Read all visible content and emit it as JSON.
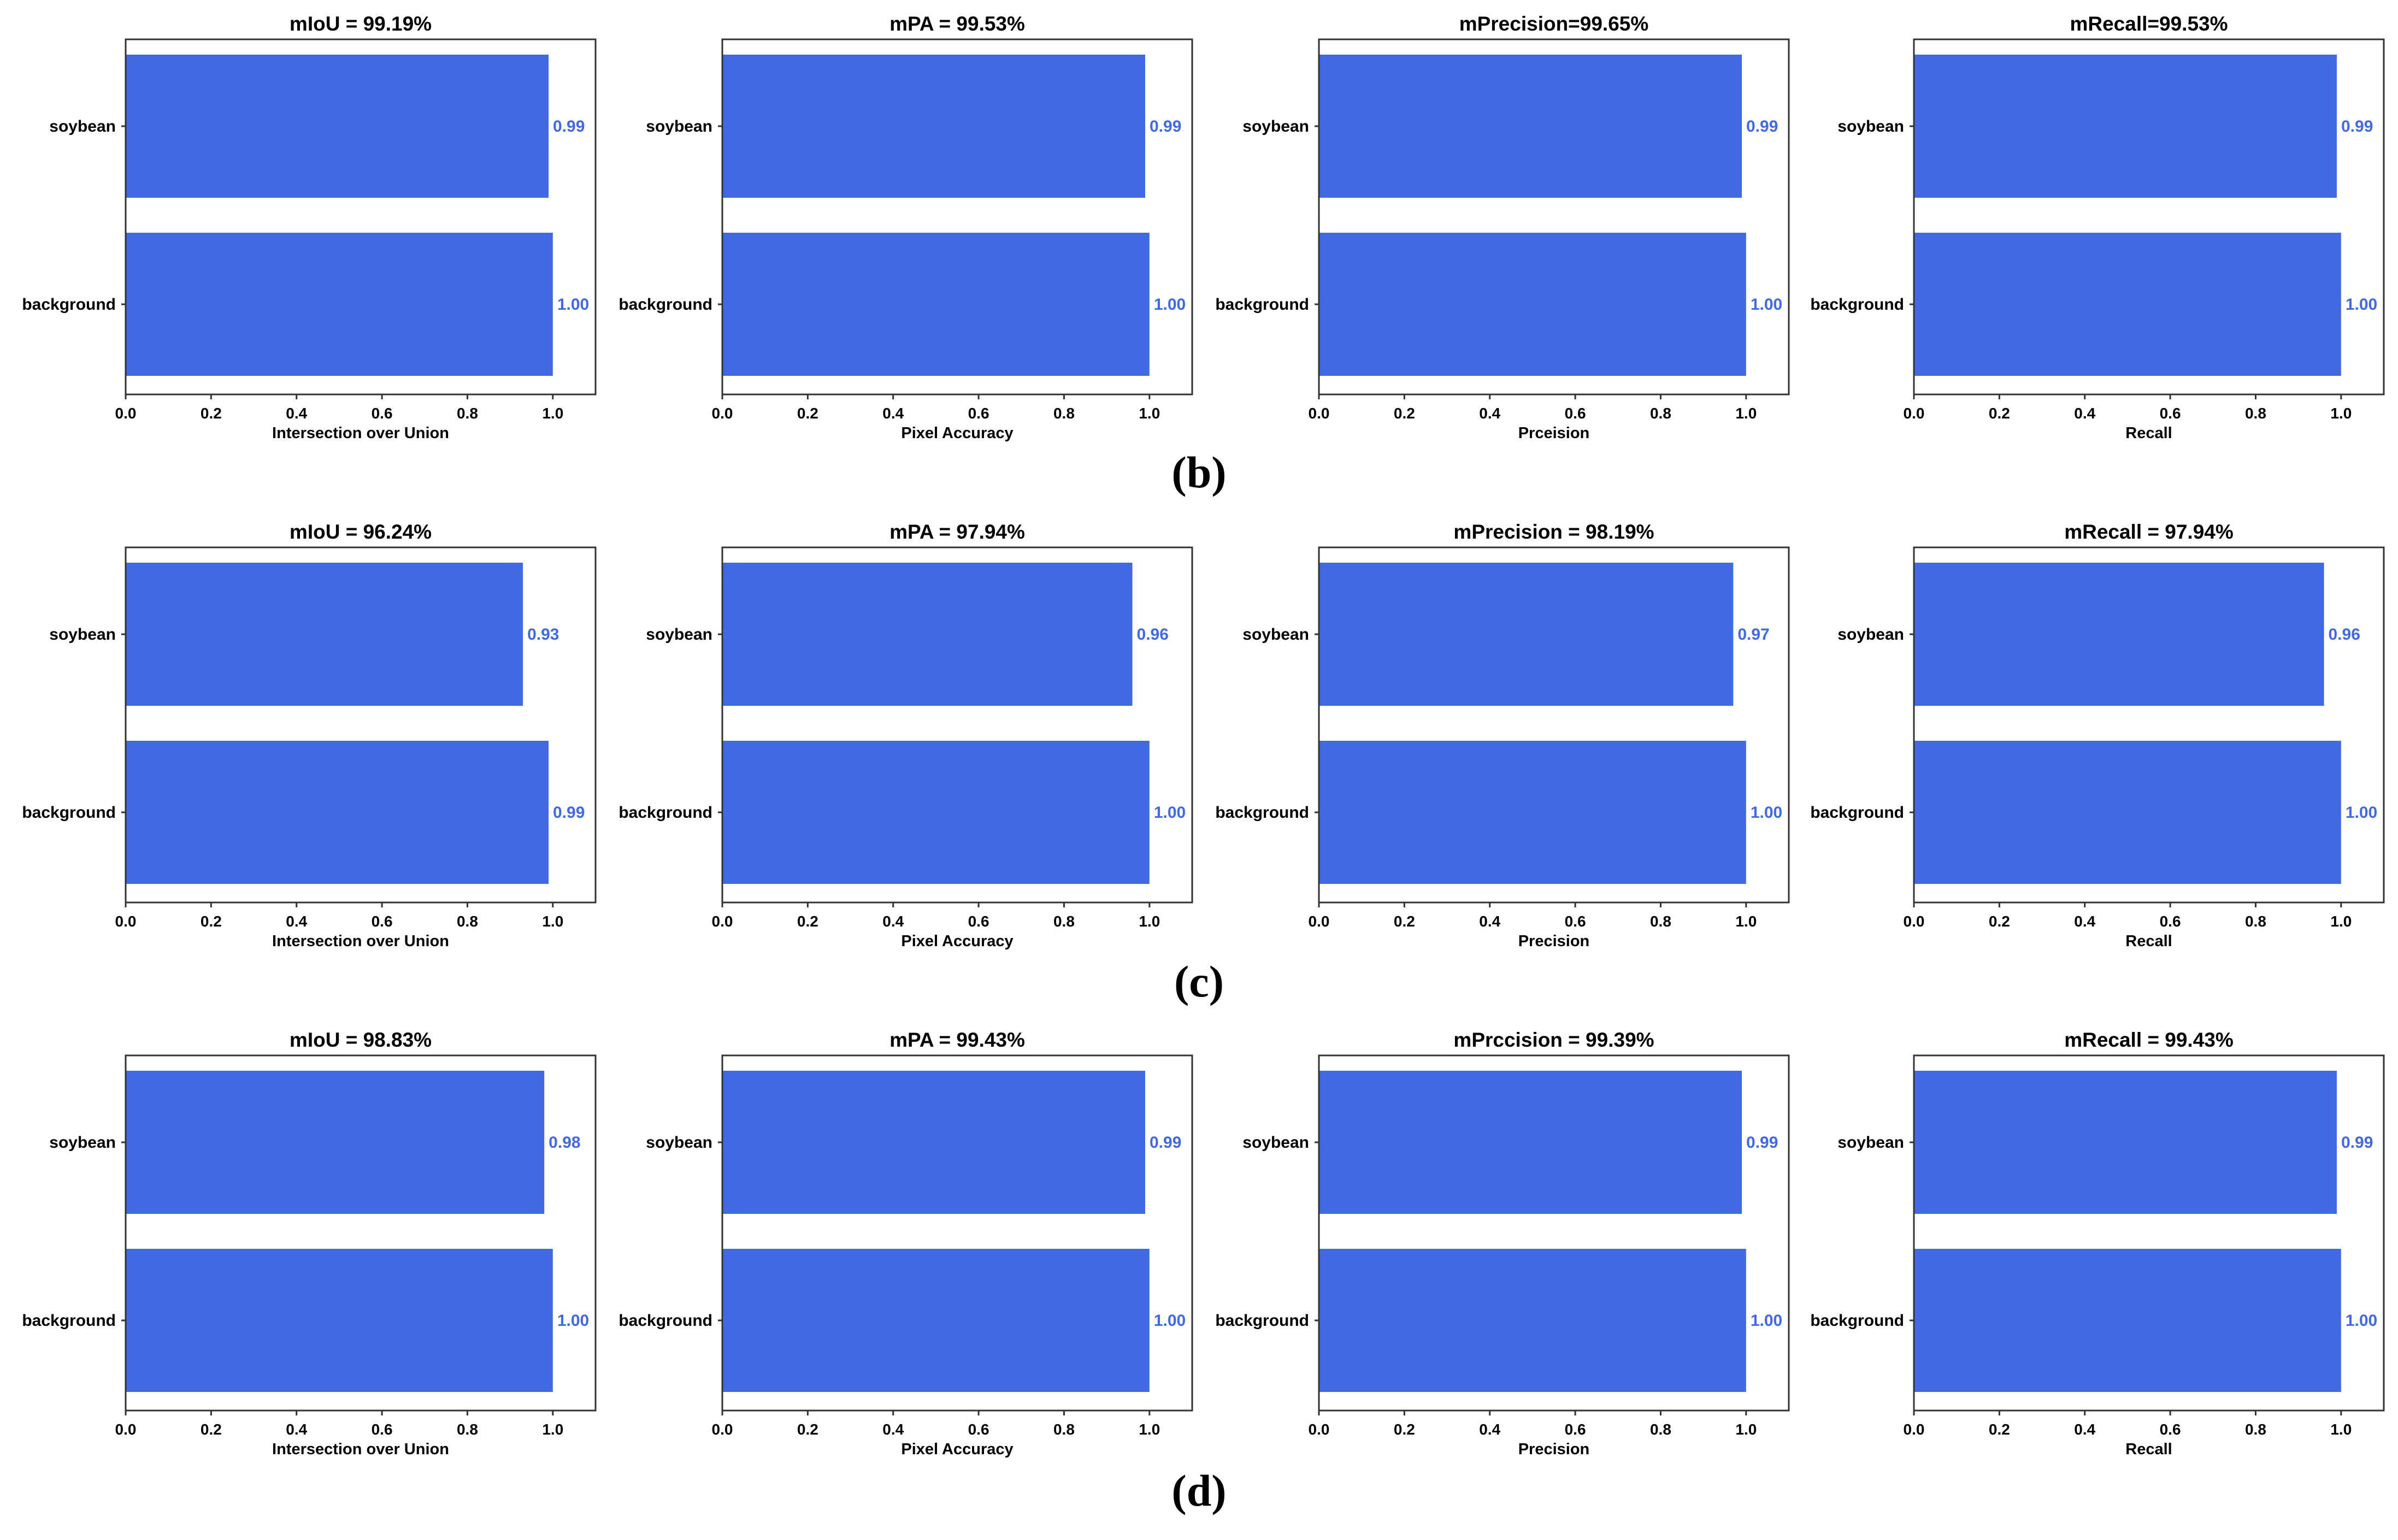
{
  "colors": {
    "bar": "#4169E1",
    "value_label": "#4169E1",
    "axis": "#333333",
    "text": "#000000"
  },
  "rows": [
    {
      "label_pre": "(",
      "label_letter": "b",
      "label_post": ")"
    },
    {
      "label_pre": "(",
      "label_letter": "c",
      "label_post": ")"
    },
    {
      "label_pre": "(",
      "label_letter": "d",
      "label_post": ")"
    }
  ],
  "chart_data": [
    {
      "row": 0,
      "col": 0,
      "type": "bar",
      "orientation": "horizontal",
      "title": "mIoU = 99.19%",
      "xlabel": "Intersection over Union",
      "ylabel": "",
      "categories": [
        "soybean",
        "background"
      ],
      "values": [
        0.99,
        1.0
      ],
      "value_labels": [
        "0.99",
        "1.00"
      ],
      "xlim": [
        0.0,
        1.1
      ],
      "xticks": [
        "0.0",
        "0.2",
        "0.4",
        "0.6",
        "0.8",
        "1.0"
      ]
    },
    {
      "row": 0,
      "col": 1,
      "type": "bar",
      "orientation": "horizontal",
      "title": "mPA = 99.53%",
      "xlabel": "Pixel Accuracy",
      "ylabel": "",
      "categories": [
        "soybean",
        "background"
      ],
      "values": [
        0.99,
        1.0
      ],
      "value_labels": [
        "0.99",
        "1.00"
      ],
      "xlim": [
        0.0,
        1.1
      ],
      "xticks": [
        "0.0",
        "0.2",
        "0.4",
        "0.6",
        "0.8",
        "1.0"
      ]
    },
    {
      "row": 0,
      "col": 2,
      "type": "bar",
      "orientation": "horizontal",
      "title": "mPrecision=99.65%",
      "xlabel": "Prceision",
      "ylabel": "",
      "categories": [
        "soybean",
        "background"
      ],
      "values": [
        0.99,
        1.0
      ],
      "value_labels": [
        "0.99",
        "1.00"
      ],
      "xlim": [
        0.0,
        1.1
      ],
      "xticks": [
        "0.0",
        "0.2",
        "0.4",
        "0.6",
        "0.8",
        "1.0"
      ]
    },
    {
      "row": 0,
      "col": 3,
      "type": "bar",
      "orientation": "horizontal",
      "title": "mRecall=99.53%",
      "xlabel": "Recall",
      "ylabel": "",
      "categories": [
        "soybean",
        "background"
      ],
      "values": [
        0.99,
        1.0
      ],
      "value_labels": [
        "0.99",
        "1.00"
      ],
      "xlim": [
        0.0,
        1.1
      ],
      "xticks": [
        "0.0",
        "0.2",
        "0.4",
        "0.6",
        "0.8",
        "1.0"
      ]
    },
    {
      "row": 1,
      "col": 0,
      "type": "bar",
      "orientation": "horizontal",
      "title": "mIoU = 96.24%",
      "xlabel": "Intersection over Union",
      "ylabel": "",
      "categories": [
        "soybean",
        "background"
      ],
      "values": [
        0.93,
        0.99
      ],
      "value_labels": [
        "0.93",
        "0.99"
      ],
      "xlim": [
        0.0,
        1.1
      ],
      "xticks": [
        "0.0",
        "0.2",
        "0.4",
        "0.6",
        "0.8",
        "1.0"
      ]
    },
    {
      "row": 1,
      "col": 1,
      "type": "bar",
      "orientation": "horizontal",
      "title": "mPA =  97.94%",
      "xlabel": "Pixel Accuracy",
      "ylabel": "",
      "categories": [
        "soybean",
        "background"
      ],
      "values": [
        0.96,
        1.0
      ],
      "value_labels": [
        "0.96",
        "1.00"
      ],
      "xlim": [
        0.0,
        1.1
      ],
      "xticks": [
        "0.0",
        "0.2",
        "0.4",
        "0.6",
        "0.8",
        "1.0"
      ]
    },
    {
      "row": 1,
      "col": 2,
      "type": "bar",
      "orientation": "horizontal",
      "title": "mPrecision = 98.19%",
      "xlabel": "Precision",
      "ylabel": "",
      "categories": [
        "soybean",
        "background"
      ],
      "values": [
        0.97,
        1.0
      ],
      "value_labels": [
        "0.97",
        "1.00"
      ],
      "xlim": [
        0.0,
        1.1
      ],
      "xticks": [
        "0.0",
        "0.2",
        "0.4",
        "0.6",
        "0.8",
        "1.0"
      ]
    },
    {
      "row": 1,
      "col": 3,
      "type": "bar",
      "orientation": "horizontal",
      "title": "mRecall = 97.94%",
      "xlabel": "Recall",
      "ylabel": "",
      "categories": [
        "soybean",
        "background"
      ],
      "values": [
        0.96,
        1.0
      ],
      "value_labels": [
        "0.96",
        "1.00"
      ],
      "xlim": [
        0.0,
        1.1
      ],
      "xticks": [
        "0.0",
        "0.2",
        "0.4",
        "0.6",
        "0.8",
        "1.0"
      ]
    },
    {
      "row": 2,
      "col": 0,
      "type": "bar",
      "orientation": "horizontal",
      "title": "mIoU = 98.83%",
      "xlabel": "Intersection over Union",
      "ylabel": "",
      "categories": [
        "soybean",
        "background"
      ],
      "values": [
        0.98,
        1.0
      ],
      "value_labels": [
        "0.98",
        "1.00"
      ],
      "xlim": [
        0.0,
        1.1
      ],
      "xticks": [
        "0.0",
        "0.2",
        "0.4",
        "0.6",
        "0.8",
        "1.0"
      ]
    },
    {
      "row": 2,
      "col": 1,
      "type": "bar",
      "orientation": "horizontal",
      "title": "mPA = 99.43%",
      "xlabel": "Pixel Accuracy",
      "ylabel": "",
      "categories": [
        "soybean",
        "background"
      ],
      "values": [
        0.99,
        1.0
      ],
      "value_labels": [
        "0.99",
        "1.00"
      ],
      "xlim": [
        0.0,
        1.1
      ],
      "xticks": [
        "0.0",
        "0.2",
        "0.4",
        "0.6",
        "0.8",
        "1.0"
      ]
    },
    {
      "row": 2,
      "col": 2,
      "type": "bar",
      "orientation": "horizontal",
      "title": "mPrccision = 99.39%",
      "xlabel": "Precision",
      "ylabel": "",
      "categories": [
        "soybean",
        "background"
      ],
      "values": [
        0.99,
        1.0
      ],
      "value_labels": [
        "0.99",
        "1.00"
      ],
      "xlim": [
        0.0,
        1.1
      ],
      "xticks": [
        "0.0",
        "0.2",
        "0.4",
        "0.6",
        "0.8",
        "1.0"
      ]
    },
    {
      "row": 2,
      "col": 3,
      "type": "bar",
      "orientation": "horizontal",
      "title": "mRecall = 99.43%",
      "xlabel": "Recall",
      "ylabel": "",
      "categories": [
        "soybean",
        "background"
      ],
      "values": [
        0.99,
        1.0
      ],
      "value_labels": [
        "0.99",
        "1.00"
      ],
      "xlim": [
        0.0,
        1.1
      ],
      "xticks": [
        "0.0",
        "0.2",
        "0.4",
        "0.6",
        "0.8",
        "1.0"
      ]
    }
  ]
}
